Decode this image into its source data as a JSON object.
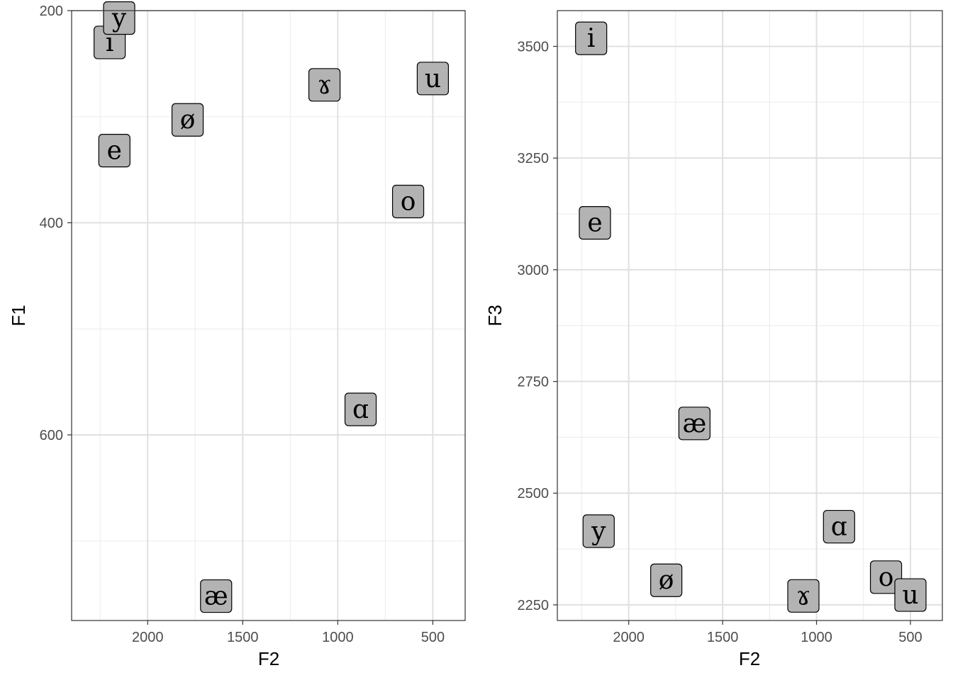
{
  "chart_data": [
    {
      "type": "scatter",
      "xlabel": "F2",
      "ylabel": "F1",
      "xlim": [
        2400,
        330
      ],
      "ylim": [
        200,
        775
      ],
      "x_reversed": true,
      "y_reversed": true,
      "x_ticks": [
        2000,
        1500,
        1000,
        500
      ],
      "x_tick_labels": [
        "2000",
        "1500",
        "1000",
        "500"
      ],
      "y_ticks": [
        200,
        400,
        600
      ],
      "y_tick_labels": [
        "200",
        "400",
        "600"
      ],
      "grid": true,
      "points": [
        {
          "label": "i",
          "x": 2200,
          "y": 230
        },
        {
          "label": "y",
          "x": 2150,
          "y": 207
        },
        {
          "label": "e",
          "x": 2175,
          "y": 332
        },
        {
          "label": "ø",
          "x": 1790,
          "y": 303
        },
        {
          "label": "ɤ",
          "x": 1070,
          "y": 270
        },
        {
          "label": "u",
          "x": 500,
          "y": 264
        },
        {
          "label": "o",
          "x": 630,
          "y": 380
        },
        {
          "label": "ɑ",
          "x": 880,
          "y": 576
        },
        {
          "label": "æ",
          "x": 1640,
          "y": 752
        }
      ],
      "label_fill": "#b3b3b3"
    },
    {
      "type": "scatter",
      "xlabel": "F2",
      "ylabel": "F3",
      "xlim": [
        2380,
        330
      ],
      "ylim": [
        2215,
        3580
      ],
      "x_reversed": true,
      "x_ticks": [
        2000,
        1500,
        1000,
        500
      ],
      "x_tick_labels": [
        "2000",
        "1500",
        "1000",
        "500"
      ],
      "y_ticks": [
        2250,
        2500,
        2750,
        3000,
        3250,
        3500
      ],
      "y_tick_labels": [
        "2250",
        "2500",
        "2750",
        "3000",
        "3250",
        "3500"
      ],
      "grid": true,
      "points": [
        {
          "label": "i",
          "x": 2200,
          "y": 3518
        },
        {
          "label": "e",
          "x": 2180,
          "y": 3105
        },
        {
          "label": "æ",
          "x": 1650,
          "y": 2656
        },
        {
          "label": "y",
          "x": 2160,
          "y": 2415
        },
        {
          "label": "ø",
          "x": 1800,
          "y": 2305
        },
        {
          "label": "ɑ",
          "x": 880,
          "y": 2425
        },
        {
          "label": "ɤ",
          "x": 1070,
          "y": 2270
        },
        {
          "label": "o",
          "x": 630,
          "y": 2312
        },
        {
          "label": "u",
          "x": 500,
          "y": 2272
        }
      ],
      "label_fill": "#b3b3b3"
    }
  ]
}
